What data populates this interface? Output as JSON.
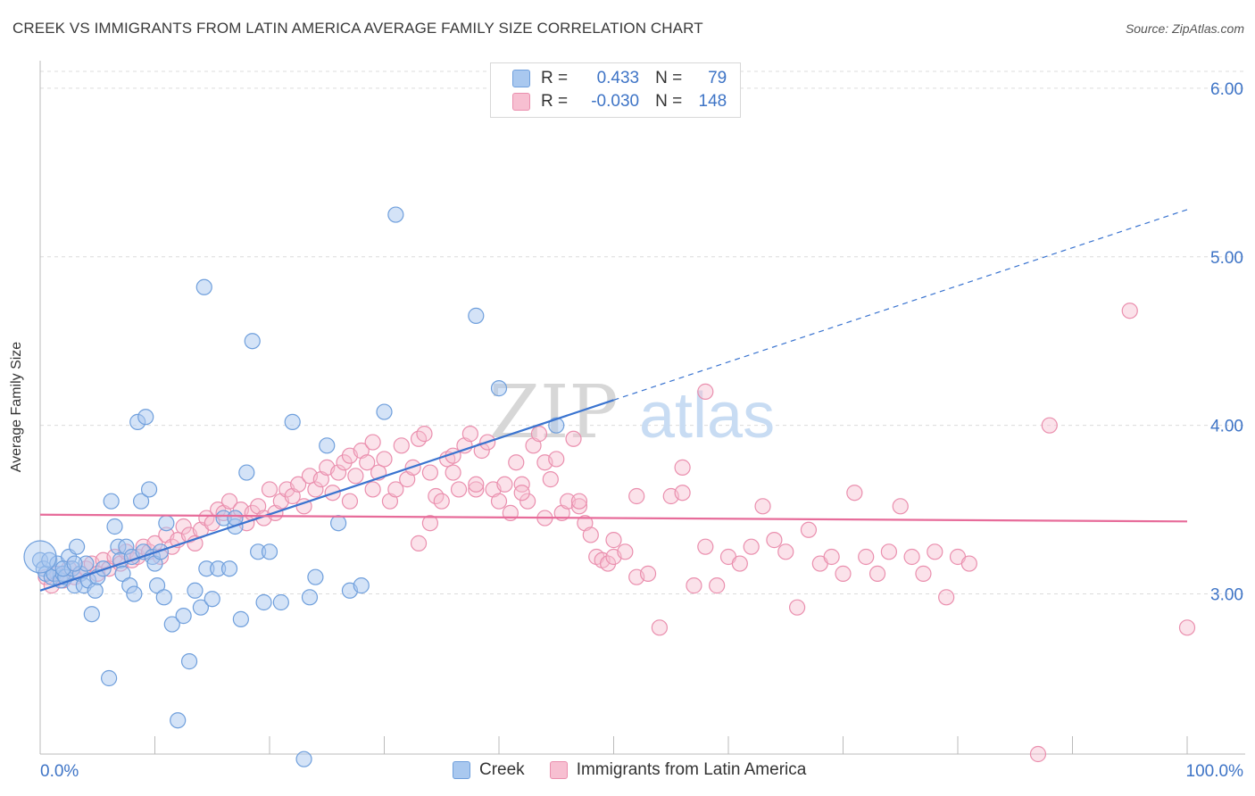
{
  "title": "CREEK VS IMMIGRANTS FROM LATIN AMERICA AVERAGE FAMILY SIZE CORRELATION CHART",
  "source": "Source: ZipAtlas.com",
  "watermark": {
    "zip": "ZIP",
    "atlas": "atlas"
  },
  "legend": {
    "r_label": "R =",
    "n_label": "N =",
    "rows": [
      {
        "r": "0.433",
        "n": "79"
      },
      {
        "r": "-0.030",
        "n": "148"
      }
    ]
  },
  "colors": {
    "creek_fill": "#a9c8ef",
    "creek_stroke": "#6f9fdc",
    "creek_line": "#3a74d0",
    "latin_fill": "#f7bfd1",
    "latin_stroke": "#ea8fae",
    "latin_line": "#e76c9a",
    "tick_label": "#3e74c6",
    "grid": "#dcdcdc"
  },
  "chart_data": {
    "type": "scatter",
    "title": "CREEK VS IMMIGRANTS FROM LATIN AMERICA AVERAGE FAMILY SIZE CORRELATION CHART",
    "xlabel": "",
    "ylabel": "Average Family Size",
    "xlim": [
      0,
      100
    ],
    "ylim": [
      2.05,
      6.1
    ],
    "x_tick_labels": [
      "0.0%",
      "100.0%"
    ],
    "y_ticks": [
      3.0,
      4.0,
      5.0,
      6.0
    ],
    "y_tick_labels": [
      "3.00",
      "4.00",
      "5.00",
      "6.00"
    ],
    "grid": true,
    "legend_position": "top-center",
    "series": [
      {
        "name": "Creek",
        "r": 0.433,
        "n": 79,
        "trend": {
          "x": [
            0,
            50
          ],
          "y": [
            3.02,
            4.15
          ],
          "extended_to": [
            100,
            5.28
          ]
        },
        "points": [
          [
            0.0,
            3.2
          ],
          [
            0.3,
            3.15
          ],
          [
            0.5,
            3.12
          ],
          [
            0.8,
            3.2
          ],
          [
            1.0,
            3.1
          ],
          [
            1.2,
            3.12
          ],
          [
            1.5,
            3.18
          ],
          [
            1.8,
            3.08
          ],
          [
            2.0,
            3.12
          ],
          [
            2.2,
            3.1
          ],
          [
            2.5,
            3.22
          ],
          [
            2.8,
            3.15
          ],
          [
            3.0,
            3.05
          ],
          [
            3.2,
            3.28
          ],
          [
            3.5,
            3.12
          ],
          [
            3.8,
            3.05
          ],
          [
            4.0,
            3.18
          ],
          [
            4.2,
            3.08
          ],
          [
            4.5,
            2.88
          ],
          [
            4.8,
            3.02
          ],
          [
            5.0,
            3.1
          ],
          [
            5.5,
            3.15
          ],
          [
            6.0,
            2.5
          ],
          [
            6.2,
            3.55
          ],
          [
            6.5,
            3.4
          ],
          [
            6.8,
            3.28
          ],
          [
            7.0,
            3.2
          ],
          [
            7.2,
            3.12
          ],
          [
            7.5,
            3.28
          ],
          [
            7.8,
            3.05
          ],
          [
            8.0,
            3.22
          ],
          [
            8.2,
            3.0
          ],
          [
            8.5,
            4.02
          ],
          [
            8.8,
            3.55
          ],
          [
            9.0,
            3.25
          ],
          [
            9.2,
            4.05
          ],
          [
            9.5,
            3.62
          ],
          [
            9.8,
            3.22
          ],
          [
            10.0,
            3.18
          ],
          [
            10.2,
            3.05
          ],
          [
            10.5,
            3.25
          ],
          [
            10.8,
            2.98
          ],
          [
            11.0,
            3.42
          ],
          [
            11.5,
            2.82
          ],
          [
            12.0,
            2.25
          ],
          [
            12.5,
            2.87
          ],
          [
            13.0,
            2.6
          ],
          [
            13.5,
            3.02
          ],
          [
            14.0,
            2.92
          ],
          [
            14.5,
            3.15
          ],
          [
            15.0,
            2.97
          ],
          [
            15.5,
            3.15
          ],
          [
            16.0,
            3.45
          ],
          [
            16.5,
            3.15
          ],
          [
            17.0,
            3.4
          ],
          [
            17.5,
            2.85
          ],
          [
            18.0,
            3.72
          ],
          [
            18.5,
            4.5
          ],
          [
            19.0,
            3.25
          ],
          [
            19.5,
            2.95
          ],
          [
            20.0,
            3.25
          ],
          [
            21.0,
            2.95
          ],
          [
            22.0,
            4.02
          ],
          [
            23.0,
            2.02
          ],
          [
            23.5,
            2.98
          ],
          [
            24.0,
            3.1
          ],
          [
            25.0,
            3.88
          ],
          [
            26.0,
            3.42
          ],
          [
            27.0,
            3.02
          ],
          [
            28.0,
            3.05
          ],
          [
            30.0,
            4.08
          ],
          [
            31.0,
            5.25
          ],
          [
            38.0,
            4.65
          ],
          [
            40.0,
            4.22
          ],
          [
            45.0,
            4.0
          ],
          [
            17.0,
            3.45
          ],
          [
            2.0,
            3.15
          ],
          [
            3.0,
            3.18
          ],
          [
            14.3,
            4.82
          ]
        ]
      },
      {
        "name": "Immigrants from Latin America",
        "r": -0.03,
        "n": 148,
        "trend": {
          "x": [
            0,
            100
          ],
          "y": [
            3.47,
            3.43
          ]
        },
        "points": [
          [
            0.5,
            3.1
          ],
          [
            1.0,
            3.05
          ],
          [
            1.5,
            3.12
          ],
          [
            2.0,
            3.08
          ],
          [
            2.5,
            3.15
          ],
          [
            3.0,
            3.1
          ],
          [
            3.5,
            3.12
          ],
          [
            4.0,
            3.15
          ],
          [
            4.5,
            3.18
          ],
          [
            5.0,
            3.12
          ],
          [
            5.5,
            3.2
          ],
          [
            6.0,
            3.15
          ],
          [
            6.5,
            3.22
          ],
          [
            7.0,
            3.18
          ],
          [
            7.5,
            3.25
          ],
          [
            8.0,
            3.2
          ],
          [
            8.5,
            3.22
          ],
          [
            9.0,
            3.28
          ],
          [
            9.5,
            3.25
          ],
          [
            10.0,
            3.3
          ],
          [
            10.5,
            3.22
          ],
          [
            11.0,
            3.35
          ],
          [
            11.5,
            3.28
          ],
          [
            12.0,
            3.32
          ],
          [
            12.5,
            3.4
          ],
          [
            13.0,
            3.35
          ],
          [
            13.5,
            3.3
          ],
          [
            14.0,
            3.38
          ],
          [
            14.5,
            3.45
          ],
          [
            15.0,
            3.42
          ],
          [
            15.5,
            3.5
          ],
          [
            16.0,
            3.48
          ],
          [
            16.5,
            3.55
          ],
          [
            17.0,
            3.45
          ],
          [
            17.5,
            3.5
          ],
          [
            18.0,
            3.42
          ],
          [
            18.5,
            3.48
          ],
          [
            19.0,
            3.52
          ],
          [
            19.5,
            3.45
          ],
          [
            20.0,
            3.62
          ],
          [
            20.5,
            3.48
          ],
          [
            21.0,
            3.55
          ],
          [
            21.5,
            3.62
          ],
          [
            22.0,
            3.58
          ],
          [
            22.5,
            3.65
          ],
          [
            23.0,
            3.52
          ],
          [
            23.5,
            3.7
          ],
          [
            24.0,
            3.62
          ],
          [
            24.5,
            3.68
          ],
          [
            25.0,
            3.75
          ],
          [
            25.5,
            3.6
          ],
          [
            26.0,
            3.72
          ],
          [
            26.5,
            3.78
          ],
          [
            27.0,
            3.82
          ],
          [
            27.5,
            3.7
          ],
          [
            28.0,
            3.85
          ],
          [
            28.5,
            3.78
          ],
          [
            29.0,
            3.9
          ],
          [
            29.5,
            3.72
          ],
          [
            30.0,
            3.8
          ],
          [
            30.5,
            3.55
          ],
          [
            31.0,
            3.62
          ],
          [
            31.5,
            3.88
          ],
          [
            32.0,
            3.68
          ],
          [
            32.5,
            3.75
          ],
          [
            33.0,
            3.92
          ],
          [
            33.5,
            3.95
          ],
          [
            34.0,
            3.72
          ],
          [
            34.5,
            3.58
          ],
          [
            35.0,
            3.55
          ],
          [
            35.5,
            3.8
          ],
          [
            36.0,
            3.72
          ],
          [
            36.5,
            3.62
          ],
          [
            37.0,
            3.88
          ],
          [
            37.5,
            3.95
          ],
          [
            38.0,
            3.62
          ],
          [
            38.5,
            3.85
          ],
          [
            39.0,
            3.9
          ],
          [
            39.5,
            3.62
          ],
          [
            40.0,
            3.55
          ],
          [
            40.5,
            3.65
          ],
          [
            41.0,
            3.48
          ],
          [
            41.5,
            3.78
          ],
          [
            42.0,
            3.65
          ],
          [
            42.5,
            3.55
          ],
          [
            43.0,
            3.88
          ],
          [
            43.5,
            3.95
          ],
          [
            44.0,
            3.78
          ],
          [
            44.5,
            3.68
          ],
          [
            45.0,
            3.8
          ],
          [
            45.5,
            3.48
          ],
          [
            46.0,
            3.55
          ],
          [
            46.5,
            3.92
          ],
          [
            47.0,
            3.52
          ],
          [
            47.5,
            3.42
          ],
          [
            48.0,
            3.35
          ],
          [
            48.5,
            3.22
          ],
          [
            49.0,
            3.2
          ],
          [
            49.5,
            3.18
          ],
          [
            50.0,
            3.22
          ],
          [
            51.0,
            3.25
          ],
          [
            52.0,
            3.1
          ],
          [
            53.0,
            3.12
          ],
          [
            54.0,
            2.8
          ],
          [
            55.0,
            3.58
          ],
          [
            56.0,
            3.6
          ],
          [
            57.0,
            3.05
          ],
          [
            58.0,
            3.28
          ],
          [
            59.0,
            3.05
          ],
          [
            60.0,
            3.22
          ],
          [
            61.0,
            3.18
          ],
          [
            62.0,
            3.28
          ],
          [
            63.0,
            3.52
          ],
          [
            64.0,
            3.32
          ],
          [
            65.0,
            3.25
          ],
          [
            66.0,
            2.92
          ],
          [
            67.0,
            3.38
          ],
          [
            68.0,
            3.18
          ],
          [
            69.0,
            3.22
          ],
          [
            70.0,
            3.12
          ],
          [
            71.0,
            3.6
          ],
          [
            72.0,
            3.22
          ],
          [
            73.0,
            3.12
          ],
          [
            74.0,
            3.25
          ],
          [
            75.0,
            3.52
          ],
          [
            76.0,
            3.22
          ],
          [
            77.0,
            3.12
          ],
          [
            78.0,
            3.25
          ],
          [
            79.0,
            2.98
          ],
          [
            80.0,
            3.22
          ],
          [
            81.0,
            3.18
          ],
          [
            95.0,
            4.68
          ],
          [
            100.0,
            2.8
          ],
          [
            87.0,
            2.05
          ],
          [
            88.0,
            4.0
          ],
          [
            58.0,
            4.2
          ],
          [
            52.0,
            3.58
          ],
          [
            56.0,
            3.75
          ],
          [
            50.0,
            3.32
          ],
          [
            47.0,
            3.55
          ],
          [
            44.0,
            3.45
          ],
          [
            42.0,
            3.6
          ],
          [
            38.0,
            3.65
          ],
          [
            36.0,
            3.82
          ],
          [
            34.0,
            3.42
          ],
          [
            33.0,
            3.3
          ],
          [
            29.0,
            3.62
          ],
          [
            27.0,
            3.55
          ]
        ]
      }
    ]
  }
}
